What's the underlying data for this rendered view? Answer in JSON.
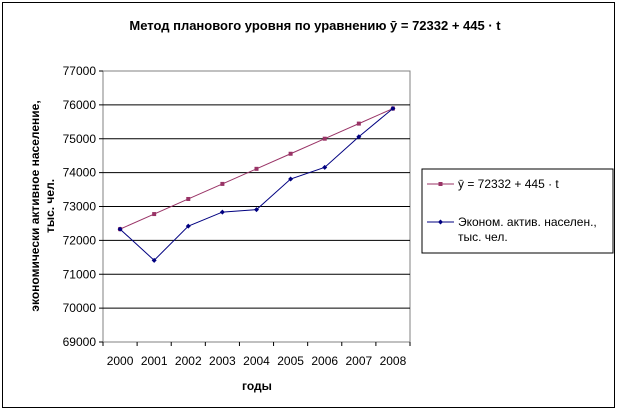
{
  "chart_data": {
    "type": "line",
    "title": "Метод планового уровня по уравнению ӯ = 72332 + 445 · t",
    "xlabel": "годы",
    "ylabel_line1": "экономически активное население,",
    "ylabel_line2": "тыс. чел.",
    "categories": [
      "2000",
      "2001",
      "2002",
      "2003",
      "2004",
      "2005",
      "2006",
      "2007",
      "2008"
    ],
    "ylim": [
      69000,
      77000
    ],
    "yticks": [
      "69000",
      "70000",
      "71000",
      "72000",
      "73000",
      "74000",
      "75000",
      "76000",
      "77000"
    ],
    "grid": "horizontal",
    "legend_position": "right",
    "series": [
      {
        "name": "ӯ = 72332 + 445 · t",
        "color": "#993366",
        "marker": "square",
        "values": [
          72332,
          72777,
          73222,
          73667,
          74112,
          74557,
          75002,
          75447,
          75892
        ]
      },
      {
        "name_line1": "Эконом. актив. населен.,",
        "name_line2": "тыс. чел.",
        "color": "#000080",
        "marker": "diamond",
        "values": [
          72332,
          71411,
          72421,
          72835,
          72909,
          73811,
          74156,
          75060,
          75892
        ]
      }
    ]
  }
}
